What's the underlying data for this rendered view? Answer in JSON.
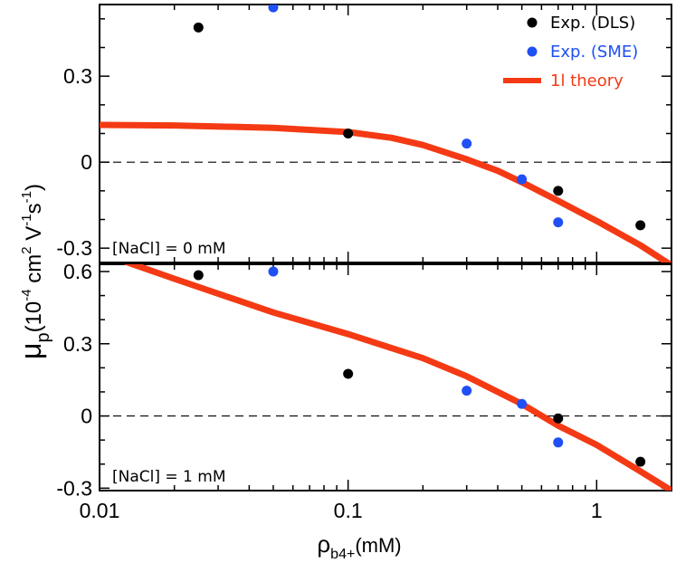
{
  "chart_data": [
    {
      "type": "scatter",
      "panel": "top",
      "annotation": "[NaCl] = 0 mM",
      "xscale": "log",
      "xlim": [
        0.01,
        2.0
      ],
      "ylim": [
        -0.35,
        0.55
      ],
      "yticks": [
        -0.3,
        0,
        0.3
      ],
      "ytick_labels": [
        "-0.3",
        "0",
        "0.3"
      ],
      "zero_line": true,
      "legend": {
        "position": "top-right",
        "entries": [
          {
            "label": "Exp. (DLS)",
            "series": "dls"
          },
          {
            "label": "Exp. (SME)",
            "series": "sme"
          },
          {
            "label": "1l theory",
            "series": "theory"
          }
        ]
      },
      "series": [
        {
          "key": "dls",
          "name": "Exp. (DLS)",
          "color": "#000000",
          "marker": "circle",
          "x": [
            0.025,
            0.1,
            0.7,
            1.5
          ],
          "y": [
            0.47,
            0.1,
            -0.1,
            -0.22
          ]
        },
        {
          "key": "sme",
          "name": "Exp. (SME)",
          "color": "#1f4ff5",
          "marker": "circle",
          "x": [
            0.05,
            0.3,
            0.5,
            0.7
          ],
          "y": [
            0.54,
            0.065,
            -0.06,
            -0.21
          ]
        },
        {
          "key": "theory",
          "name": "1l theory",
          "color": "#f43a14",
          "marker": "line",
          "x": [
            0.01,
            0.02,
            0.05,
            0.1,
            0.15,
            0.2,
            0.3,
            0.4,
            0.5,
            0.7,
            1.0,
            1.5,
            2.0
          ],
          "y": [
            0.13,
            0.128,
            0.12,
            0.105,
            0.085,
            0.06,
            0.01,
            -0.03,
            -0.07,
            -0.135,
            -0.205,
            -0.29,
            -0.36
          ]
        }
      ]
    },
    {
      "type": "scatter",
      "panel": "bottom",
      "annotation": "[NaCl] = 1 mM",
      "xscale": "log",
      "xlim": [
        0.01,
        2.0
      ],
      "xticks": [
        0.01,
        0.1,
        1
      ],
      "xtick_labels": [
        "0.01",
        "0.1",
        "1"
      ],
      "ylim": [
        -0.31,
        0.63
      ],
      "yticks": [
        -0.3,
        0,
        0.3,
        0.6
      ],
      "ytick_labels": [
        "-0.3",
        "0",
        "0.3",
        "0.6"
      ],
      "zero_line": true,
      "series": [
        {
          "key": "dls",
          "name": "Exp. (DLS)",
          "color": "#000000",
          "marker": "circle",
          "x": [
            0.025,
            0.1,
            0.7,
            1.5
          ],
          "y": [
            0.585,
            0.175,
            -0.01,
            -0.19
          ]
        },
        {
          "key": "sme",
          "name": "Exp. (SME)",
          "color": "#1f4ff5",
          "marker": "circle",
          "x": [
            0.05,
            0.3,
            0.5,
            0.7
          ],
          "y": [
            0.6,
            0.105,
            0.05,
            -0.11
          ]
        },
        {
          "key": "theory",
          "name": "1l theory",
          "color": "#f43a14",
          "marker": "line",
          "x": [
            0.012,
            0.02,
            0.05,
            0.1,
            0.2,
            0.3,
            0.5,
            0.7,
            1.0,
            1.5,
            2.0
          ],
          "y": [
            0.65,
            0.57,
            0.43,
            0.34,
            0.24,
            0.165,
            0.05,
            -0.04,
            -0.12,
            -0.23,
            -0.31
          ]
        }
      ]
    }
  ],
  "axes": {
    "ylabel_main": "μ",
    "ylabel_sub": "p",
    "ylabel_units": "(10",
    "ylabel_exp1": "-4",
    "ylabel_cm": " cm",
    "ylabel_exp2": "2",
    "ylabel_v": " V",
    "ylabel_exp3": "-1",
    "ylabel_s": "s",
    "ylabel_exp4": "-1",
    "ylabel_close": ")",
    "xlabel_main": "ρ",
    "xlabel_sub": "b4+",
    "xlabel_units": "(mM)"
  }
}
